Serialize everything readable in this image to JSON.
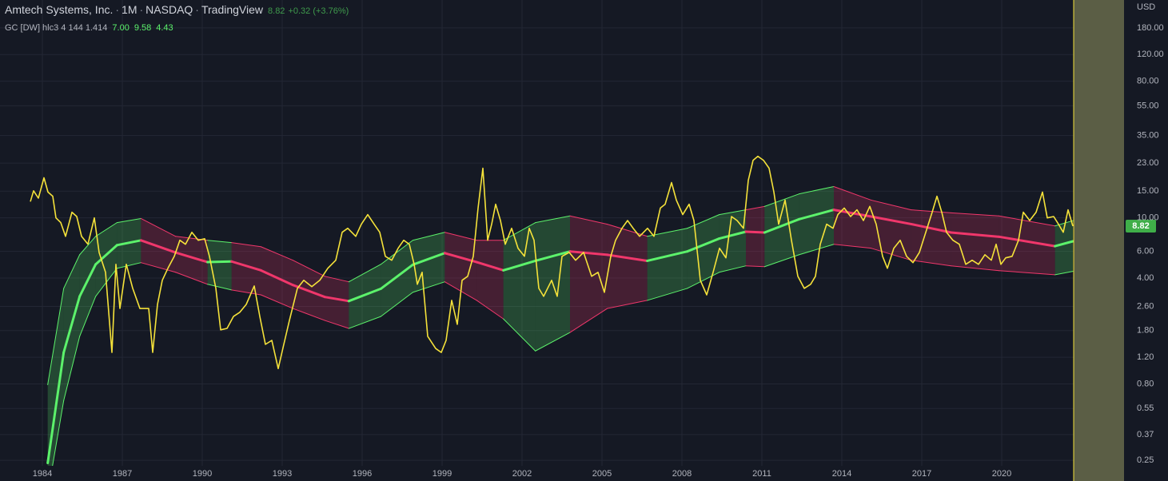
{
  "chart_data": {
    "type": "line",
    "title": "Amtech Systems, Inc.",
    "interval": "1M",
    "exchange": "NASDAQ",
    "source": "TradingView",
    "separator": "·",
    "last_price": 8.82,
    "change_label": "+0.32 (+3.76%)",
    "currency": "USD",
    "indicator": {
      "label": "GC [DW] hlc3 4 144 1.414",
      "values": [
        7.0,
        9.58,
        4.43
      ],
      "value_labels": [
        "7.00",
        "9.58",
        "4.43"
      ]
    },
    "log_scale": true,
    "grid": true,
    "xlim": [
      1982.41,
      2024.59
    ],
    "xticks": [
      1984,
      1987,
      1990,
      1993,
      1996,
      1999,
      2002,
      2005,
      2008,
      2011,
      2014,
      2017,
      2020
    ],
    "ylim": [
      0.23,
      275
    ],
    "yticks": [
      {
        "value": 180,
        "label": "180.00"
      },
      {
        "value": 120,
        "label": "120.00"
      },
      {
        "value": 80,
        "label": "80.00"
      },
      {
        "value": 55,
        "label": "55.00"
      },
      {
        "value": 35,
        "label": "35.00"
      },
      {
        "value": 23,
        "label": "23.00"
      },
      {
        "value": 15,
        "label": "15.00"
      },
      {
        "value": 10,
        "label": "10.00"
      },
      {
        "value": 6,
        "label": "6.00"
      },
      {
        "value": 4,
        "label": "4.00"
      },
      {
        "value": 2.6,
        "label": "2.60"
      },
      {
        "value": 1.8,
        "label": "1.80"
      },
      {
        "value": 1.2,
        "label": "1.20"
      },
      {
        "value": 0.8,
        "label": "0.80"
      },
      {
        "value": 0.55,
        "label": "0.55"
      },
      {
        "value": 0.37,
        "label": "0.37"
      },
      {
        "value": 0.25,
        "label": "0.25"
      }
    ],
    "highlight_start": 2022.7,
    "highlight_color": "#5b5e45",
    "price": {
      "color": "#f5e23a",
      "x": [
        1983.55,
        1983.67,
        1983.85,
        1984.06,
        1984.21,
        1984.39,
        1984.51,
        1984.69,
        1984.87,
        1985.11,
        1985.29,
        1985.47,
        1985.71,
        1985.95,
        1986.13,
        1986.37,
        1986.61,
        1986.76,
        1986.91,
        1987.15,
        1987.39,
        1987.66,
        1987.99,
        1988.14,
        1988.32,
        1988.5,
        1988.71,
        1988.95,
        1989.16,
        1989.37,
        1989.61,
        1989.85,
        1990.09,
        1990.27,
        1990.51,
        1990.69,
        1990.93,
        1991.17,
        1991.41,
        1991.65,
        1991.95,
        1992.16,
        1992.37,
        1992.61,
        1992.85,
        1993.06,
        1993.27,
        1993.57,
        1993.81,
        1994.11,
        1994.41,
        1994.71,
        1995.01,
        1995.25,
        1995.46,
        1995.76,
        1995.97,
        1996.21,
        1996.45,
        1996.66,
        1996.87,
        1997.11,
        1997.35,
        1997.56,
        1997.77,
        1997.95,
        1998.07,
        1998.25,
        1998.46,
        1998.76,
        1998.97,
        1999.15,
        1999.36,
        1999.57,
        1999.75,
        1999.96,
        2000.17,
        2000.35,
        2000.53,
        2000.71,
        2000.86,
        2001.01,
        2001.19,
        2001.37,
        2001.61,
        2001.85,
        2002.09,
        2002.27,
        2002.45,
        2002.63,
        2002.81,
        2003.11,
        2003.32,
        2003.5,
        2003.77,
        2004.01,
        2004.31,
        2004.61,
        2004.85,
        2005.09,
        2005.33,
        2005.51,
        2005.75,
        2005.96,
        2006.17,
        2006.41,
        2006.71,
        2006.95,
        2007.19,
        2007.37,
        2007.61,
        2007.79,
        2008.03,
        2008.27,
        2008.45,
        2008.69,
        2008.93,
        2009.17,
        2009.41,
        2009.65,
        2009.86,
        2010.07,
        2010.31,
        2010.49,
        2010.67,
        2010.85,
        2011.06,
        2011.27,
        2011.45,
        2011.63,
        2011.87,
        2012.11,
        2012.35,
        2012.59,
        2012.83,
        2013.01,
        2013.19,
        2013.43,
        2013.67,
        2013.85,
        2014.09,
        2014.33,
        2014.57,
        2014.81,
        2015.05,
        2015.29,
        2015.53,
        2015.71,
        2015.95,
        2016.19,
        2016.43,
        2016.67,
        2016.91,
        2017.15,
        2017.39,
        2017.57,
        2017.75,
        2017.93,
        2018.17,
        2018.41,
        2018.65,
        2018.89,
        2019.13,
        2019.37,
        2019.61,
        2019.79,
        2019.97,
        2020.15,
        2020.39,
        2020.63,
        2020.81,
        2021.05,
        2021.29,
        2021.53,
        2021.71,
        2021.95,
        2022.13,
        2022.31,
        2022.49,
        2022.67
      ],
      "values": [
        12.8,
        15.1,
        13.5,
        18.4,
        14.8,
        13.9,
        10,
        9.3,
        7.55,
        10.9,
        10.2,
        7.55,
        6.7,
        10,
        5.9,
        4.37,
        1.29,
        4.93,
        2.52,
        4.93,
        3.42,
        2.52,
        2.52,
        1.29,
        2.68,
        3.87,
        4.64,
        5.57,
        7.11,
        6.69,
        8.03,
        7.11,
        7.28,
        5.57,
        3.42,
        1.82,
        1.86,
        2.23,
        2.38,
        2.68,
        3.55,
        2.23,
        1.46,
        1.55,
        1.01,
        1.46,
        2.1,
        3.42,
        3.87,
        3.51,
        3.87,
        4.64,
        5.25,
        8.03,
        8.53,
        7.55,
        9.08,
        10.5,
        9.08,
        8.03,
        5.57,
        5.25,
        6.3,
        7.11,
        6.69,
        4.93,
        3.64,
        4.37,
        1.65,
        1.37,
        1.29,
        1.55,
        2.85,
        1.98,
        3.87,
        4.11,
        5.57,
        11.6,
        21.3,
        7.11,
        9.08,
        12.3,
        9.6,
        6.69,
        8.53,
        6.3,
        5.57,
        8.53,
        7.11,
        3.42,
        3.03,
        3.87,
        3.03,
        5.57,
        5.91,
        5.25,
        5.91,
        4.11,
        4.37,
        3.22,
        5.57,
        7.11,
        8.53,
        9.6,
        8.53,
        7.55,
        8.53,
        7.55,
        11.6,
        12.3,
        17.1,
        13.1,
        10.5,
        12.3,
        9.6,
        3.87,
        3.1,
        4.37,
        6.3,
        5.44,
        10.2,
        9.6,
        8.53,
        17.7,
        24,
        25.5,
        24,
        21.3,
        14.8,
        9.08,
        13.1,
        7.11,
        4.11,
        3.42,
        3.64,
        4.11,
        6.69,
        9.08,
        8.53,
        10.5,
        11.6,
        10.2,
        11.3,
        9.6,
        11.9,
        9.08,
        5.57,
        4.64,
        6.3,
        7.11,
        5.57,
        5.06,
        5.91,
        8.03,
        10.9,
        13.9,
        10.9,
        8.03,
        7.11,
        6.69,
        4.93,
        5.25,
        4.93,
        5.71,
        5.25,
        6.69,
        4.93,
        5.44,
        5.57,
        7.11,
        10.9,
        9.6,
        10.9,
        14.8,
        10,
        10.2,
        9.08,
        8.03,
        11.3,
        8.82
      ]
    },
    "bands": {
      "rising_color": "#5cf26b",
      "falling_color": "#f0376b",
      "x": [
        1984.2,
        1984.8,
        1985.4,
        1986.0,
        1986.8,
        1987.7,
        1989.0,
        1990.2,
        1991.1,
        1992.2,
        1993.4,
        1994.6,
        1995.5,
        1996.7,
        1997.9,
        1999.1,
        2000.3,
        2001.3,
        2002.5,
        2003.8,
        2005.2,
        2006.7,
        2008.2,
        2009.4,
        2010.4,
        2011.1,
        2012.4,
        2013.7,
        2015.1,
        2016.6,
        2018.1,
        2019.9,
        2022.0,
        2022.67
      ],
      "basis": [
        0.24,
        1.29,
        3.03,
        4.93,
        6.6,
        7.1,
        5.9,
        5.1,
        5.15,
        4.5,
        3.6,
        3.0,
        2.82,
        3.4,
        4.9,
        5.85,
        5.1,
        4.5,
        5.2,
        6.0,
        5.7,
        5.2,
        6.0,
        7.3,
        8.1,
        8.0,
        9.8,
        11.3,
        10.2,
        9.1,
        8.0,
        7.5,
        6.5,
        7.0
      ],
      "upper": [
        0.79,
        3.42,
        5.71,
        7.55,
        9.3,
        9.9,
        7.55,
        7.11,
        6.86,
        6.45,
        5.25,
        4.11,
        3.78,
        4.93,
        7.11,
        8.03,
        7.11,
        7.11,
        9.3,
        10.3,
        9.08,
        7.55,
        8.53,
        10.5,
        11.3,
        11.9,
        14.4,
        16.1,
        13.1,
        11.3,
        10.8,
        10.3,
        8.85,
        9.58
      ],
      "lower": [
        0.15,
        0.62,
        1.65,
        3.03,
        4.64,
        5.06,
        4.37,
        3.64,
        3.34,
        3.1,
        2.52,
        2.1,
        1.86,
        2.23,
        3.22,
        3.78,
        2.85,
        2.15,
        1.32,
        1.75,
        2.52,
        2.85,
        3.42,
        4.37,
        4.82,
        4.76,
        5.71,
        6.69,
        6.3,
        5.25,
        4.82,
        4.48,
        4.21,
        4.43
      ]
    }
  }
}
